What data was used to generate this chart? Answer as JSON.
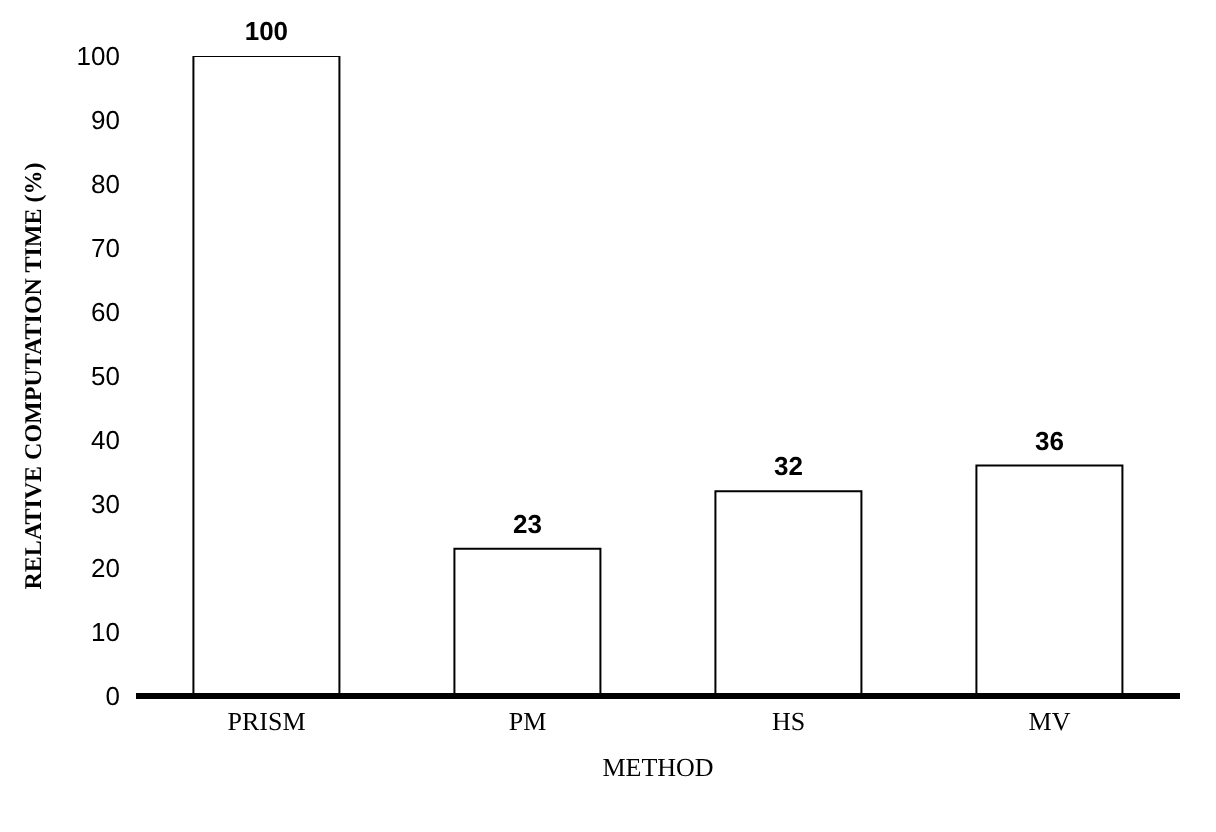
{
  "chart_data": {
    "type": "bar",
    "xlabel": "METHOD",
    "ylabel": "RELATIVE COMPUTATION TIME (%)",
    "categories": [
      "PRISM",
      "PM",
      "HS",
      "MV"
    ],
    "values": [
      100,
      23,
      32,
      36
    ],
    "color": "#ffffff",
    "ylim": [
      0,
      100
    ],
    "yticks": [
      0,
      10,
      20,
      30,
      40,
      50,
      60,
      70,
      80,
      90,
      100
    ],
    "data_labels": true
  }
}
